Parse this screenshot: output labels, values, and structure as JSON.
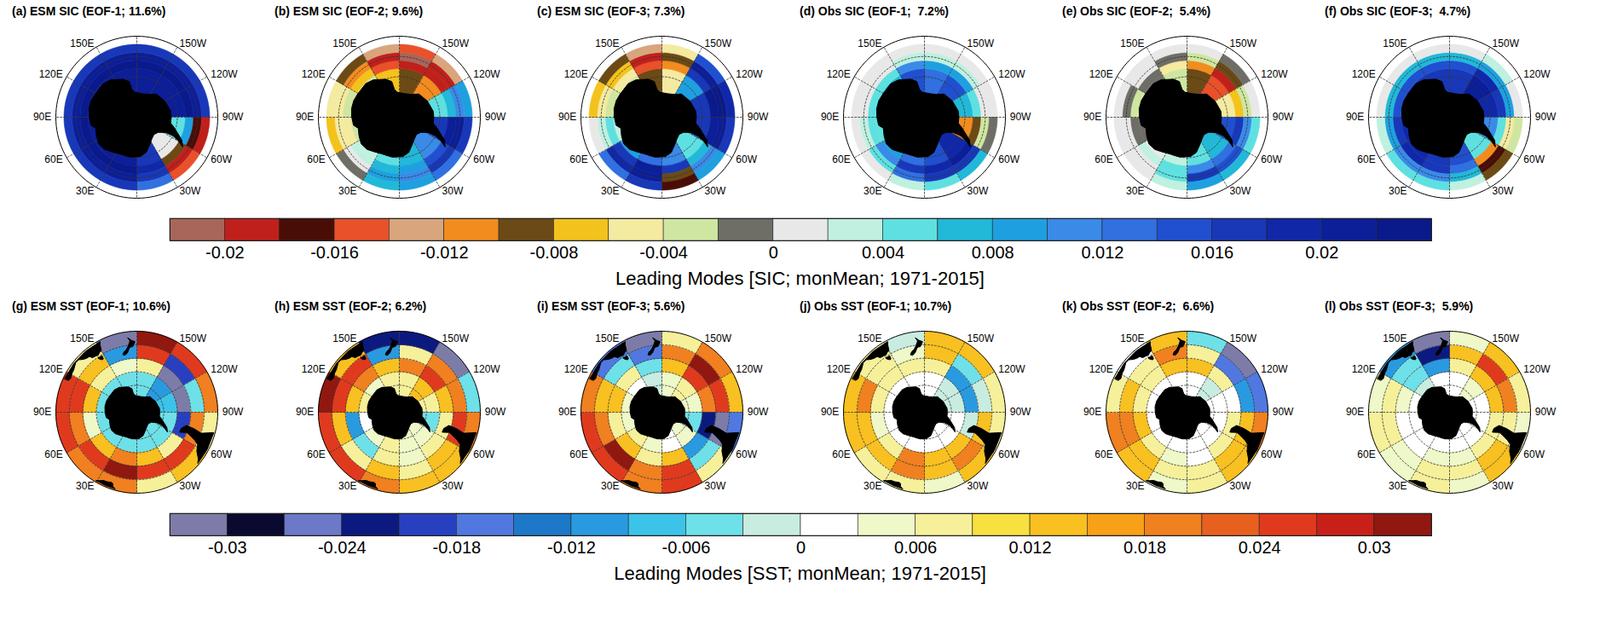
{
  "chart_data": [
    {
      "type": "map",
      "lat_lim": [
        -90,
        -50
      ],
      "lat_ticks": [
        -80,
        -70,
        -60
      ],
      "grid": true,
      "lon_ticks": [
        180,
        {
          "value": -150,
          "label": "150W"
        },
        {
          "value": -120,
          "label": "120W"
        },
        {
          "value": -90,
          "label": "90W"
        },
        {
          "value": -60,
          "label": "60W"
        },
        {
          "value": -30,
          "label": "30W"
        },
        0,
        {
          "value": 30,
          "label": "30E"
        },
        {
          "value": 60,
          "label": "60E"
        },
        {
          "value": 90,
          "label": "90E"
        },
        {
          "value": 120,
          "label": "120E"
        },
        {
          "value": 150,
          "label": "150E"
        }
      ],
      "lon_edges": [
        -180,
        -150,
        -120,
        -90,
        -60,
        -30,
        0,
        30,
        60,
        90,
        120,
        150,
        180
      ],
      "lat_edges": [
        -78,
        -66,
        -62,
        -58,
        -54
      ],
      "panels": [
        {
          "title": "(a) ESM SIC (EOF-1; 11.6%)",
          "values": [
            [
              0.02,
              0.02,
              0.02,
              0.004,
              0,
              0.016,
              0.02,
              0.02,
              0.02,
              0.02,
              0.02,
              0.02
            ],
            [
              0.022,
              0.022,
              0.022,
              0.008,
              -0.01,
              0.018,
              0.022,
              0.022,
              0.022,
              0.022,
              0.022,
              0.022
            ],
            [
              0.02,
              0.02,
              0.02,
              -0.018,
              -0.02,
              0.016,
              0.02,
              0.02,
              0.02,
              0.02,
              0.02,
              0.02
            ],
            [
              0.016,
              0.016,
              0.016,
              -0.02,
              -0.016,
              0.012,
              0.016,
              0.016,
              0.016,
              0.016,
              0.016,
              0.016
            ]
          ]
        },
        {
          "title": "(b) ESM SIC (EOF-2; 9.6%)",
          "values": [
            [
              -0.01,
              -0.012,
              0.004,
              0.016,
              0.01,
              0.006,
              0.004,
              0.002,
              -0.004,
              -0.002,
              -0.004,
              -0.008
            ],
            [
              -0.02,
              -0.02,
              0.006,
              0.02,
              0.014,
              0.008,
              0.006,
              0.002,
              -0.006,
              -0.004,
              -0.008,
              -0.016
            ],
            [
              -0.022,
              -0.02,
              0.01,
              0.02,
              0.016,
              0.01,
              0.008,
              0,
              -0.006,
              -0.006,
              -0.012,
              -0.02
            ],
            [
              -0.016,
              -0.014,
              0.008,
              0.016,
              0.012,
              0.008,
              0.006,
              -0.002,
              -0.008,
              -0.006,
              -0.01,
              -0.014
            ]
          ]
        },
        {
          "title": "(c) ESM SIC (EOF-3; 7.3%)",
          "values": [
            [
              -0.006,
              0.008,
              0.016,
              0.016,
              0.004,
              0.01,
              0.012,
              0.008,
              0.002,
              -0.002,
              -0.004,
              -0.01
            ],
            [
              -0.012,
              0.016,
              0.022,
              0.02,
              0.006,
              0.016,
              0.02,
              0.016,
              0.004,
              -0.004,
              -0.006,
              -0.016
            ],
            [
              -0.01,
              0.02,
              0.022,
              0.02,
              0.01,
              -0.01,
              0.02,
              0.018,
              0.002,
              -0.006,
              -0.008,
              -0.02
            ],
            [
              -0.006,
              0.014,
              0.018,
              0.016,
              0.008,
              -0.018,
              0.016,
              0.012,
              0,
              -0.008,
              -0.01,
              -0.014
            ]
          ]
        },
        {
          "title": "(d) Obs SIC (EOF-1;  7.2%)",
          "values": [
            [
              0.012,
              0.014,
              0.006,
              -0.012,
              0.018,
              0.014,
              0.012,
              0.008,
              0.004,
              0.004,
              0.006,
              0.014
            ],
            [
              0.008,
              0.008,
              0.004,
              -0.01,
              0.02,
              0.018,
              0.016,
              0.01,
              0.004,
              0.004,
              0.004,
              0.01
            ],
            [
              0.002,
              0.002,
              0,
              -0.004,
              0.016,
              0.016,
              0.012,
              0.004,
              0.002,
              0,
              0,
              0.002
            ],
            [
              0,
              0,
              0,
              -0.002,
              0.006,
              0.004,
              0.002,
              0,
              0,
              0,
              0,
              0
            ]
          ]
        },
        {
          "title": "(e) Obs SIC (EOF-2;  5.4%)",
          "values": [
            [
              -0.01,
              -0.016,
              -0.006,
              0.014,
              0.006,
              0.004,
              0.002,
              0,
              -0.002,
              -0.004,
              -0.002,
              -0.004
            ],
            [
              -0.012,
              -0.02,
              -0.008,
              0.016,
              0.012,
              0.01,
              0.004,
              0.002,
              -0.002,
              -0.004,
              -0.002,
              -0.006
            ],
            [
              -0.004,
              -0.01,
              -0.004,
              0.01,
              0.014,
              0.016,
              0.004,
              0,
              0,
              -0.002,
              0,
              -0.002
            ],
            [
              0,
              -0.002,
              0,
              0.004,
              0.006,
              0.008,
              0.002,
              0,
              0,
              0,
              0,
              0
            ]
          ]
        },
        {
          "title": "(f) Obs SIC (EOF-3;  4.7%)",
          "values": [
            [
              0.016,
              0.02,
              0.018,
              0.01,
              0.004,
              0.014,
              0.016,
              0.018,
              0.018,
              0.016,
              0.016,
              0.016
            ],
            [
              0.014,
              0.018,
              0.016,
              0.004,
              -0.012,
              0.012,
              0.016,
              0.018,
              0.016,
              0.014,
              0.014,
              0.014
            ],
            [
              0.006,
              0.008,
              0.008,
              -0.006,
              -0.018,
              0.006,
              0.01,
              0.01,
              0.008,
              0.006,
              0.006,
              0.006
            ],
            [
              0,
              0.002,
              0,
              -0.004,
              -0.01,
              0.002,
              0.004,
              0.004,
              0.002,
              0,
              0,
              0
            ]
          ]
        }
      ],
      "colorbar": {
        "label": "Leading Modes [SIC; monMean; 1971-2015]",
        "xlim": [
          -0.022,
          0.024
        ],
        "xticks": [
          -0.02,
          -0.016,
          -0.012,
          -0.008,
          -0.004,
          0,
          0.004,
          0.008,
          0.012,
          0.016,
          0.02
        ],
        "bins": [
          -0.022,
          -0.02,
          -0.018,
          -0.016,
          -0.014,
          -0.012,
          -0.01,
          -0.008,
          -0.006,
          -0.004,
          -0.002,
          0,
          0.002,
          0.004,
          0.006,
          0.008,
          0.01,
          0.012,
          0.014,
          0.016,
          0.018,
          0.02,
          0.022,
          0.024
        ],
        "colors": [
          "#a8665a",
          "#c0201c",
          "#4a0d06",
          "#e8512a",
          "#d8a57c",
          "#f28c1e",
          "#6b4a16",
          "#f4c21c",
          "#f4eaa0",
          "#cfe6a0",
          "#6e6e66",
          "#e8e8e8",
          "#bff0e0",
          "#5fe0e0",
          "#22b8d8",
          "#1ea0e0",
          "#3a8ae8",
          "#3070e0",
          "#2050d0",
          "#1838b8",
          "#1028a8",
          "#0c1e98",
          "#0a1a8a"
        ]
      }
    },
    {
      "type": "map",
      "lat_lim": [
        -90,
        -30
      ],
      "lat_ticks": [
        -80,
        -70,
        -60,
        -50,
        -40
      ],
      "grid": true,
      "lon_ticks": [
        180,
        {
          "value": -150,
          "label": "150W"
        },
        {
          "value": -120,
          "label": "120W"
        },
        {
          "value": -90,
          "label": "90W"
        },
        {
          "value": -60,
          "label": "60W"
        },
        {
          "value": -30,
          "label": "30W"
        },
        0,
        {
          "value": 30,
          "label": "30E"
        },
        {
          "value": 60,
          "label": "60E"
        },
        {
          "value": 90,
          "label": "90E"
        },
        {
          "value": 120,
          "label": "120E"
        },
        {
          "value": 150,
          "label": "150E"
        }
      ],
      "lon_edges": [
        -180,
        -150,
        -120,
        -90,
        -60,
        -30,
        0,
        30,
        60,
        90,
        120,
        150,
        180
      ],
      "lat_edges": [
        -78,
        -60,
        -50,
        -40,
        -30
      ],
      "panels": [
        {
          "title": "(g) ESM SST (EOF-1; 10.6%)",
          "values": [
            [
              -0.006,
              -0.01,
              -0.008,
              -0.004,
              -0.006,
              -0.004,
              -0.004,
              -0.006,
              -0.004,
              -0.004,
              -0.006,
              -0.006
            ],
            [
              0.006,
              -0.031,
              -0.031,
              -0.02,
              0.006,
              0.012,
              0.018,
              0.012,
              0.004,
              0.012,
              0.006,
              0.004
            ],
            [
              0.024,
              -0.02,
              -0.006,
              0.018,
              0.024,
              0.024,
              0.03,
              0.024,
              0.018,
              0.024,
              0.012,
              -0.012
            ],
            [
              0.03,
              0.024,
              0.018,
              0.006,
              0.012,
              0.006,
              0.018,
              0.018,
              0.024,
              0.024,
              0.006,
              -0.031
            ]
          ]
        },
        {
          "title": "(h) ESM SST (EOF-2; 6.2%)",
          "values": [
            [
              0.006,
              0.012,
              0.006,
              -0.006,
              0.003,
              0.003,
              0.006,
              0.003,
              0,
              0.006,
              0.003,
              0.006
            ],
            [
              0.018,
              0.024,
              0.012,
              0.006,
              0.006,
              0.003,
              0.006,
              -0.006,
              -0.012,
              0.012,
              0.018,
              0.012
            ],
            [
              0.006,
              0.018,
              0.018,
              0.024,
              0.012,
              0.006,
              0.012,
              0.006,
              0.012,
              0.024,
              0.024,
              -0.012
            ],
            [
              -0.024,
              -0.031,
              -0.006,
              0.018,
              0.012,
              0.012,
              0.018,
              0.024,
              0.024,
              0.03,
              0.012,
              -0.024
            ]
          ]
        },
        {
          "title": "(i) ESM SST (EOF-3; 5.6%)",
          "values": [
            [
              0.003,
              0.006,
              0.003,
              -0.006,
              0.003,
              0,
              0.003,
              0.006,
              0.003,
              0.003,
              0,
              -0.003
            ],
            [
              0.012,
              0.024,
              0.018,
              -0.024,
              -0.012,
              0.012,
              0.006,
              0.012,
              0.006,
              0.012,
              0.006,
              -0.006
            ],
            [
              0.018,
              0.03,
              0.024,
              -0.031,
              -0.006,
              0.024,
              0.018,
              0.03,
              0.018,
              0.012,
              -0.006,
              -0.018
            ],
            [
              0.006,
              0.018,
              0.012,
              -0.018,
              0.006,
              0.024,
              0.018,
              0.024,
              0.024,
              0.018,
              -0.018,
              -0.031
            ]
          ]
        },
        {
          "title": "(j) Obs SST (EOF-1; 10.7%)",
          "values": [
            [
              0,
              -0.003,
              -0.003,
              0,
              0,
              0,
              0,
              0,
              0,
              0,
              0,
              0
            ],
            [
              0.006,
              -0.012,
              -0.012,
              -0.003,
              0.012,
              0.012,
              0.018,
              0.006,
              0.003,
              0.006,
              0.006,
              0.006
            ],
            [
              0.012,
              -0.006,
              -0.003,
              0.012,
              0.018,
              0.012,
              0.018,
              0.012,
              0.012,
              0.018,
              0.006,
              0.003
            ],
            [
              0.012,
              0.012,
              0.006,
              0.006,
              0.012,
              0.003,
              0.006,
              0.006,
              0.012,
              0.012,
              0.006,
              -0.003
            ]
          ]
        },
        {
          "title": "(k) Obs SST (EOF-2;  6.6%)",
          "values": [
            [
              0,
              -0.003,
              0,
              0,
              0,
              0,
              0,
              0,
              0,
              0,
              0,
              0
            ],
            [
              0.012,
              0.006,
              0,
              0.006,
              0.006,
              0,
              0.003,
              0.006,
              0.012,
              0.006,
              0.006,
              0.012
            ],
            [
              0.006,
              -0.018,
              -0.012,
              0.012,
              0.012,
              0.006,
              0.006,
              0.012,
              0.018,
              0.012,
              0.006,
              0.018
            ],
            [
              -0.006,
              -0.031,
              -0.018,
              0.018,
              0.012,
              0.006,
              0.003,
              0.012,
              0.018,
              0.006,
              0,
              0.012
            ]
          ]
        },
        {
          "title": "(l) Obs SST (EOF-3;  5.9%)",
          "values": [
            [
              0,
              0.003,
              0,
              0,
              0,
              0,
              0,
              0,
              0,
              0,
              -0.003,
              0
            ],
            [
              0.006,
              0.012,
              0.012,
              0.006,
              0.006,
              0.003,
              0.003,
              0,
              0,
              0.003,
              -0.006,
              -0.012
            ],
            [
              0.012,
              0.024,
              0.018,
              0.006,
              0.012,
              0.006,
              0.006,
              0.003,
              0.006,
              0.006,
              -0.006,
              -0.024
            ],
            [
              0.003,
              0.012,
              0.006,
              0.003,
              0.012,
              0.003,
              0.006,
              0.003,
              0.006,
              0.003,
              -0.012,
              -0.031
            ]
          ]
        }
      ],
      "colorbar": {
        "label": "Leading Modes [SST; monMean; 1971-2015]",
        "xlim": [
          -0.033,
          0.033
        ],
        "xticks": [
          -0.03,
          -0.024,
          -0.018,
          -0.012,
          -0.006,
          0,
          0.006,
          0.012,
          0.018,
          0.024,
          0.03
        ],
        "bins": [
          -0.033,
          -0.03,
          -0.027,
          -0.024,
          -0.021,
          -0.018,
          -0.015,
          -0.012,
          -0.009,
          -0.006,
          -0.003,
          0,
          0.003,
          0.006,
          0.009,
          0.012,
          0.015,
          0.018,
          0.021,
          0.024,
          0.027,
          0.03,
          0.033
        ],
        "colors": [
          "#7d7ca8",
          "#0a0a30",
          "#6c78c8",
          "#0c1a80",
          "#2840c0",
          "#5078e0",
          "#1e78c8",
          "#2a9ae0",
          "#3cc4e8",
          "#6ee0e8",
          "#c8ece0",
          "#ffffff",
          "#eef8c8",
          "#f6f09a",
          "#f8e040",
          "#f8c020",
          "#f8a018",
          "#f08020",
          "#e86020",
          "#e03a1e",
          "#c82018",
          "#901810"
        ]
      }
    }
  ]
}
